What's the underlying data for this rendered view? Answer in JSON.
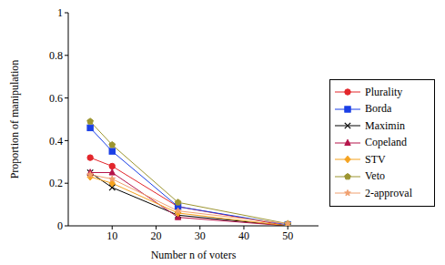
{
  "chart_data": {
    "type": "line",
    "x_label": "Number n of voters",
    "y_label": "Proportion of manipulation",
    "x": [
      5,
      10,
      25,
      50
    ],
    "xlim": [
      0,
      57
    ],
    "xticks": [
      10,
      20,
      30,
      40,
      50
    ],
    "ylim": [
      0,
      1
    ],
    "yticks": [
      0,
      0.2,
      0.4,
      0.6,
      0.8,
      1
    ],
    "grid": false,
    "legend": "right",
    "series": [
      {
        "name": "Plurality",
        "color": "#e3262b",
        "marker": "circle",
        "values": [
          0.32,
          0.28,
          0.09,
          0.0
        ]
      },
      {
        "name": "Borda",
        "color": "#1a3fe6",
        "marker": "square",
        "values": [
          0.46,
          0.35,
          0.09,
          0.005
        ]
      },
      {
        "name": "Maximin",
        "color": "#000000",
        "marker": "x",
        "values": [
          0.25,
          0.18,
          0.05,
          0.0
        ]
      },
      {
        "name": "Copeland",
        "color": "#b5154b",
        "marker": "triangle",
        "values": [
          0.25,
          0.25,
          0.04,
          0.0
        ]
      },
      {
        "name": "STV",
        "color": "#f5a21e",
        "marker": "diamond",
        "values": [
          0.23,
          0.2,
          0.06,
          0.0
        ]
      },
      {
        "name": "Veto",
        "color": "#9c9530",
        "marker": "pentagon",
        "values": [
          0.49,
          0.38,
          0.11,
          0.01
        ]
      },
      {
        "name": "2-approval",
        "color": "#f0a070",
        "marker": "star",
        "values": [
          0.24,
          0.22,
          0.07,
          0.01
        ]
      }
    ]
  }
}
